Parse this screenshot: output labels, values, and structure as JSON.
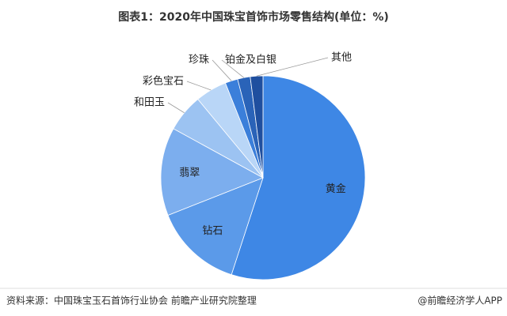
{
  "chart_data": {
    "type": "pie",
    "title": "图表1：2020年中国珠宝首饰市场零售结构(单位：%)",
    "categories": [
      "黄金",
      "钻石",
      "翡翠",
      "和田玉",
      "彩色宝石",
      "珍珠",
      "铂金及白银",
      "其他"
    ],
    "values": [
      55,
      14,
      14,
      6,
      5,
      2,
      2,
      2
    ],
    "colors": [
      "#3e87e5",
      "#5b9ae9",
      "#7caeee",
      "#9cc3f2",
      "#b9d6f7",
      "#3b7fda",
      "#2a63b8",
      "#1f4f9f"
    ],
    "source": "资料来源：中国珠宝玉石首饰行业协会 前瞻产业研究院整理",
    "credit": "@前瞻经济学人APP"
  }
}
